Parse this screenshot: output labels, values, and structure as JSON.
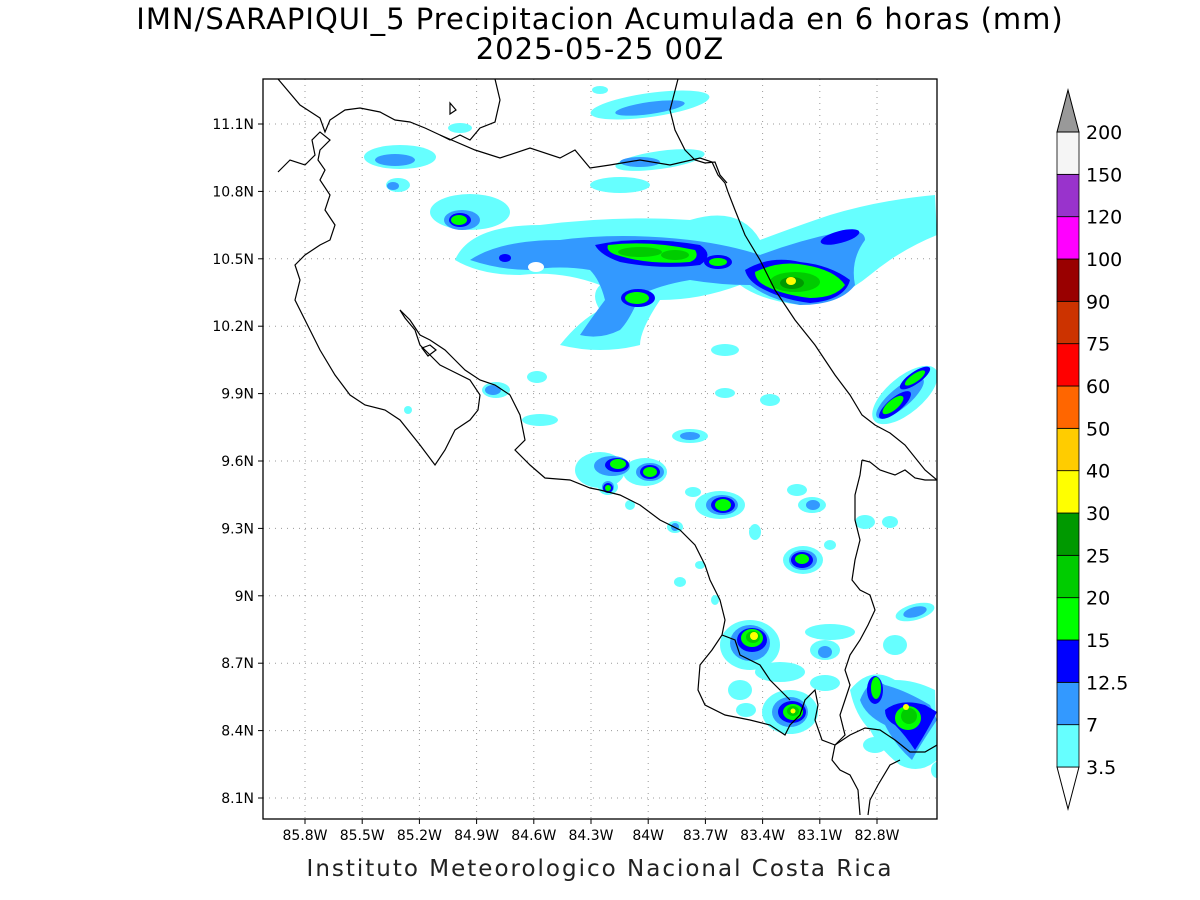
{
  "header": {
    "title_line1": "IMN/SARAPIQUI_5 Precipitacion Acumulada en 6 horas (mm)",
    "title_line2": "2025-05-25 00Z"
  },
  "footer": {
    "credit": "Instituto Meteorologico Nacional Costa Rica"
  },
  "map": {
    "lat_labels": [
      "11.1N",
      "10.8N",
      "10.5N",
      "10.2N",
      "9.9N",
      "9.6N",
      "9.3N",
      "9N",
      "8.7N",
      "8.4N",
      "8.1N"
    ],
    "lon_labels": [
      "85.8W",
      "85.5W",
      "85.2W",
      "84.9W",
      "84.6W",
      "84.3W",
      "84W",
      "83.7W",
      "83.4W",
      "83.1W",
      "82.8W"
    ],
    "gridlines": true
  },
  "colorbar": {
    "unit": "mm",
    "levels": [
      "3.5",
      "7",
      "12.5",
      "15",
      "20",
      "25",
      "30",
      "40",
      "50",
      "60",
      "75",
      "90",
      "100",
      "120",
      "150",
      "200"
    ],
    "colors": [
      "#66ffff",
      "#3399ff",
      "#0000ff",
      "#00ff00",
      "#00cc00",
      "#009900",
      "#ffff00",
      "#ffcc00",
      "#ff6600",
      "#ff0000",
      "#cc3300",
      "#990000",
      "#ff00ff",
      "#9933cc",
      "#f5f5f5",
      "#999999"
    ]
  }
}
